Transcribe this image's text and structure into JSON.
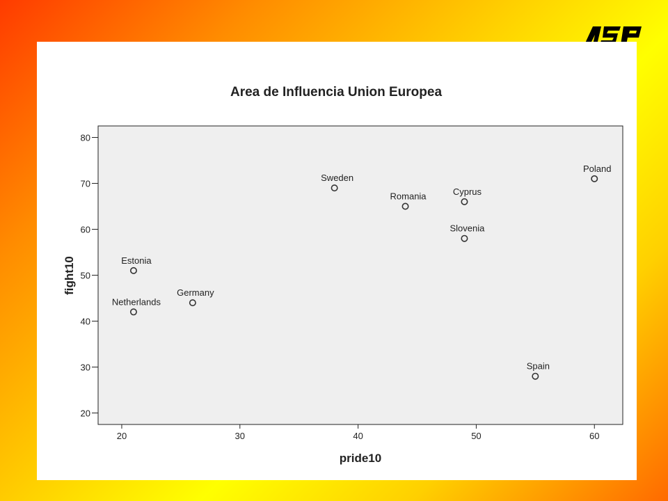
{
  "logo": {
    "text": "ASP",
    "color": "#000000"
  },
  "colors": {
    "plot_background": "#efefef",
    "marker": "#333333"
  },
  "chart_data": {
    "type": "scatter",
    "title": "Area de Influencia Union Europea",
    "xlabel": "pride10",
    "ylabel": "fight10",
    "xlim": [
      18,
      62.4
    ],
    "ylim": [
      17.5,
      82.5
    ],
    "xticks": [
      20,
      30,
      40,
      50,
      60
    ],
    "yticks": [
      20,
      30,
      40,
      50,
      60,
      70,
      80
    ],
    "grid": false,
    "points": [
      {
        "label": "Netherlands",
        "x": 21,
        "y": 42
      },
      {
        "label": "Estonia",
        "x": 21,
        "y": 51
      },
      {
        "label": "Germany",
        "x": 26,
        "y": 44
      },
      {
        "label": "Sweden",
        "x": 38,
        "y": 69
      },
      {
        "label": "Romania",
        "x": 44,
        "y": 65
      },
      {
        "label": "Cyprus",
        "x": 49,
        "y": 66
      },
      {
        "label": "Slovenia",
        "x": 49,
        "y": 58
      },
      {
        "label": "Spain",
        "x": 55,
        "y": 28
      },
      {
        "label": "Poland",
        "x": 60,
        "y": 71
      }
    ]
  }
}
